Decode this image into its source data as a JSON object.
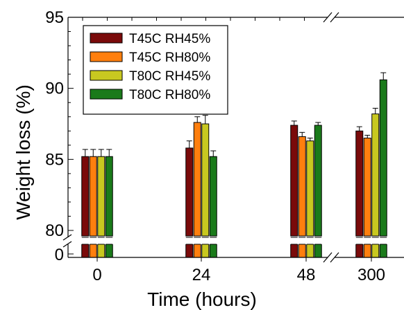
{
  "chart_data": {
    "type": "bar",
    "xlabel": "Time (hours)",
    "ylabel": "Weight loss (%)",
    "categories": [
      "0",
      "24",
      "48",
      "300"
    ],
    "ylim": [
      80,
      95
    ],
    "y_break_lower_tick": "0",
    "yticks": [
      "80",
      "85",
      "90",
      "95"
    ],
    "x_axis_break": true,
    "y_axis_break": true,
    "legend_position": "top-left",
    "series": [
      {
        "name": "T45C RH45%",
        "color": "#7a0a0a",
        "values": [
          85.2,
          85.8,
          87.4,
          87.0
        ],
        "errors": [
          0.5,
          0.5,
          0.3,
          0.3
        ]
      },
      {
        "name": "T45C RH80%",
        "color": "#ff7f0e",
        "values": [
          85.2,
          87.6,
          86.6,
          86.5
        ],
        "errors": [
          0.5,
          0.4,
          0.3,
          0.2
        ]
      },
      {
        "name": "T80C RH45%",
        "color": "#c8c820",
        "values": [
          85.2,
          87.5,
          86.3,
          88.2
        ],
        "errors": [
          0.5,
          0.6,
          0.2,
          0.4
        ]
      },
      {
        "name": "T80C RH80%",
        "color": "#1a7a1a",
        "values": [
          85.2,
          85.2,
          87.4,
          90.6
        ],
        "errors": [
          0.5,
          0.4,
          0.2,
          0.5
        ]
      }
    ]
  }
}
